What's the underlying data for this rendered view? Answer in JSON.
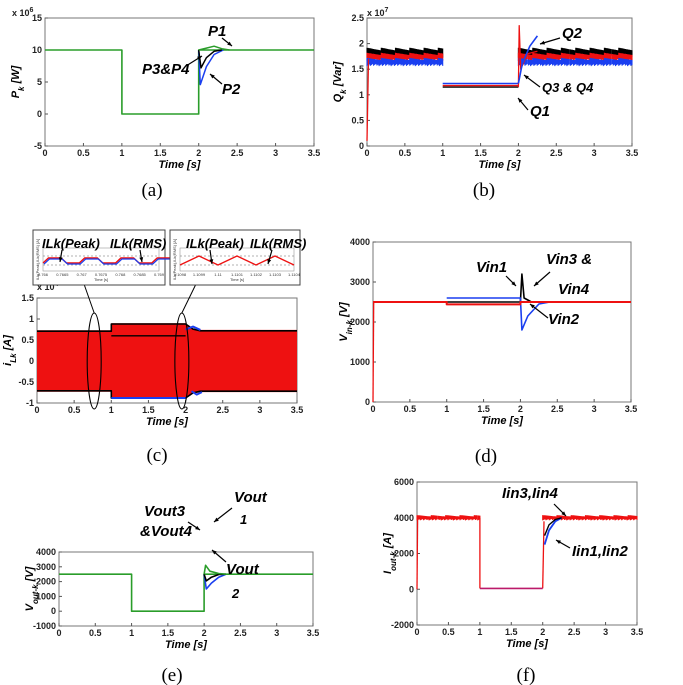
{
  "colors": {
    "green": "#2a9d2a",
    "red": "#ee1111",
    "blue": "#1a3ff0",
    "black": "#000000",
    "magenta": "#bb1a6a"
  },
  "chart_data": [
    {
      "id": "a",
      "caption": "(a)",
      "type": "line",
      "ylabel": "P",
      "ylabel_sub": "k",
      "yunit": " [W]",
      "xlabel": "Time [s]",
      "exponent_base": "x 10",
      "exponent_power": "6",
      "xlim": [
        0,
        3.5
      ],
      "ylim": [
        -5,
        15
      ],
      "xticks": [
        "0",
        "0.5",
        "1",
        "1.5",
        "2",
        "2.5",
        "3",
        "3.5"
      ],
      "yticks": [
        "-5",
        "0",
        "5",
        "10",
        "15"
      ],
      "series": [
        {
          "color": "green",
          "points": [
            [
              0,
              10
            ],
            [
              1,
              10
            ],
            [
              1,
              0
            ],
            [
              2,
              0
            ],
            [
              2,
              10
            ],
            [
              3.5,
              10
            ]
          ]
        },
        {
          "color": "black",
          "points": [
            [
              2,
              10
            ],
            [
              2.03,
              7.2
            ],
            [
              2.1,
              8.8
            ],
            [
              2.2,
              9.8
            ],
            [
              2.3,
              10
            ]
          ]
        },
        {
          "color": "blue",
          "points": [
            [
              2,
              10
            ],
            [
              2.02,
              4.6
            ],
            [
              2.1,
              7.4
            ],
            [
              2.2,
              9.3
            ],
            [
              2.32,
              10
            ]
          ]
        },
        {
          "color": "green",
          "points": [
            [
              2,
              10
            ],
            [
              2.1,
              10.3
            ],
            [
              2.2,
              10.6
            ],
            [
              2.3,
              10.2
            ],
            [
              2.4,
              10
            ]
          ]
        }
      ],
      "annotations": [
        "P1",
        "P3&P4",
        "P2"
      ]
    },
    {
      "id": "b",
      "caption": "(b)",
      "type": "line",
      "ylabel": "Q",
      "ylabel_sub": "k",
      "yunit": " [Var]",
      "xlabel": "Time [s]",
      "exponent_base": "x 10",
      "exponent_power": "7",
      "xlim": [
        0,
        3.5
      ],
      "ylim": [
        0,
        2.5
      ],
      "xticks": [
        "0",
        "0.5",
        "1",
        "1.5",
        "2",
        "2.5",
        "3",
        "3.5"
      ],
      "yticks": [
        "0",
        "0.5",
        "1",
        "1.5",
        "2",
        "2.5"
      ],
      "series": [
        {
          "color": "black",
          "band": [
            1.72,
            1.92
          ],
          "segments": [
            [
              0,
              1
            ],
            [
              2,
              3.5
            ]
          ],
          "mid": 1.15
        },
        {
          "color": "red",
          "band": [
            1.66,
            1.82
          ],
          "segments": [
            [
              0,
              1
            ],
            [
              2,
              3.5
            ]
          ],
          "mid": 1.18
        },
        {
          "color": "blue",
          "band": [
            1.56,
            1.72
          ],
          "segments": [
            [
              0,
              1
            ],
            [
              2,
              3.5
            ]
          ],
          "mid": 1.22
        }
      ],
      "annotations": [
        "Q2",
        "Q3 & Q4",
        "Q1"
      ]
    },
    {
      "id": "c",
      "caption": "(c)",
      "type": "area",
      "ylabel": "i",
      "ylabel_sub": "Lk",
      "yunit": " [A]",
      "xlabel": "Time [s]",
      "exponent_base": "x 10",
      "exponent_power": "4",
      "xlim": [
        0,
        3.5
      ],
      "ylim": [
        -1,
        1.5
      ],
      "xticks": [
        "0",
        "0.5",
        "1",
        "1.5",
        "2",
        "2.5",
        "3",
        "3.5"
      ],
      "yticks": [
        "-1",
        "-0.5",
        "0",
        "0.5",
        "1",
        "1.5"
      ],
      "envelope": [
        [
          0,
          0.73
        ],
        [
          1,
          0.73
        ],
        [
          1,
          0.9
        ],
        [
          2,
          0.9
        ],
        [
          2.1,
          0.78
        ],
        [
          2.2,
          0.74
        ],
        [
          3.5,
          0.74
        ]
      ],
      "inset_labels": [
        "ILk(Peak)",
        "ILk(RMS)",
        "ILk(Peak)",
        "ILk(RMS)"
      ],
      "inset_xticks_left": [
        "0.766",
        "0.7665",
        "0.767",
        "0.7675",
        "0.768",
        "0.7685",
        "0.769"
      ],
      "inset_xticks_right": [
        "1.1098",
        "1.1099",
        "1.11",
        "1.1101",
        "1.1102",
        "1.1103",
        "1.1104"
      ],
      "inset_xlabel": "Time [s]",
      "inset_ylabel": "ILk(Peak),ILk(RMS) [A]"
    },
    {
      "id": "d",
      "caption": "(d)",
      "type": "line",
      "ylabel": "V",
      "ylabel_sub": "in-k",
      "yunit": " [V]",
      "xlabel": "Time [s]",
      "xlim": [
        0,
        3.5
      ],
      "ylim": [
        0,
        4000
      ],
      "xticks": [
        "0",
        "0.5",
        "1",
        "1.5",
        "2",
        "2.5",
        "3",
        "3.5"
      ],
      "yticks": [
        "0",
        "1000",
        "2000",
        "3000",
        "4000"
      ],
      "series": [
        {
          "color": "red",
          "points": [
            [
              0,
              2500
            ],
            [
              1,
              2500
            ],
            [
              1,
              2440
            ],
            [
              2,
              2440
            ],
            [
              2,
              2500
            ],
            [
              3.5,
              2500
            ]
          ]
        },
        {
          "color": "blue",
          "points": [
            [
              1,
              2600
            ],
            [
              2,
              2600
            ],
            [
              2.02,
              1800
            ],
            [
              2.1,
              2150
            ],
            [
              2.25,
              2450
            ],
            [
              2.4,
              2500
            ]
          ]
        },
        {
          "color": "black",
          "points": [
            [
              1,
              2500
            ],
            [
              2,
              2500
            ],
            [
              2.02,
              3200
            ],
            [
              2.05,
              2600
            ],
            [
              2.15,
              2500
            ]
          ]
        }
      ],
      "annotations": [
        "Vin1",
        "Vin3 &",
        "Vin4",
        "Vin2"
      ]
    },
    {
      "id": "e",
      "caption": "(e)",
      "type": "line",
      "ylabel": "V",
      "ylabel_sub": "out-k",
      "yunit": " [V]",
      "xlabel": "Time [s]",
      "xlim": [
        0,
        3.5
      ],
      "ylim": [
        -1000,
        4000
      ],
      "xticks": [
        "0",
        "0.5",
        "1",
        "1.5",
        "2",
        "2.5",
        "3",
        "3.5"
      ],
      "yticks": [
        "-1000",
        "0",
        "1000",
        "2000",
        "3000",
        "4000"
      ],
      "series": [
        {
          "color": "green",
          "points": [
            [
              0,
              2500
            ],
            [
              1,
              2500
            ],
            [
              1,
              0
            ],
            [
              2,
              0
            ],
            [
              2,
              2500
            ],
            [
              3.5,
              2500
            ]
          ]
        },
        {
          "color": "black",
          "points": [
            [
              2,
              2500
            ],
            [
              2.03,
              2050
            ],
            [
              2.1,
              2300
            ],
            [
              2.2,
              2480
            ],
            [
              2.3,
              2500
            ]
          ]
        },
        {
          "color": "blue",
          "points": [
            [
              2,
              2500
            ],
            [
              2.03,
              1500
            ],
            [
              2.1,
              1900
            ],
            [
              2.2,
              2300
            ],
            [
              2.3,
              2500
            ]
          ]
        },
        {
          "color": "green",
          "points": [
            [
              2,
              2500
            ],
            [
              2.02,
              3100
            ],
            [
              2.08,
              2700
            ],
            [
              2.2,
              2550
            ],
            [
              2.3,
              2500
            ]
          ]
        }
      ],
      "annotations": [
        "Vout",
        "1",
        "Vout3",
        "&Vout4",
        "Vout",
        "2"
      ]
    },
    {
      "id": "f",
      "caption": "(f)",
      "type": "line",
      "ylabel": "I",
      "ylabel_sub": "out-k",
      "yunit": " [A]",
      "xlabel": "Time [s]",
      "xlim": [
        0,
        3.5
      ],
      "ylim": [
        -2000,
        6000
      ],
      "xticks": [
        "0",
        "0.5",
        "1",
        "1.5",
        "2",
        "2.5",
        "3",
        "3.5"
      ],
      "yticks": [
        "-2000",
        "0",
        "2000",
        "4000",
        "6000"
      ],
      "series": [
        {
          "color": "red",
          "band": [
            3850,
            4150
          ],
          "segments": [
            [
              0,
              1
            ],
            [
              2,
              3.5
            ]
          ]
        },
        {
          "color": "magenta",
          "points": [
            [
              1,
              50
            ],
            [
              2,
              50
            ]
          ]
        },
        {
          "color": "blue",
          "points": [
            [
              2.03,
              2500
            ],
            [
              2.1,
              3300
            ],
            [
              2.2,
              3800
            ],
            [
              2.3,
              4000
            ]
          ]
        },
        {
          "color": "black",
          "points": [
            [
              2.03,
              3000
            ],
            [
              2.1,
              3600
            ],
            [
              2.2,
              3900
            ],
            [
              2.3,
              4000
            ]
          ]
        }
      ],
      "annotations": [
        "Iin3,Iin4",
        "Iin1,Iin2"
      ]
    }
  ]
}
